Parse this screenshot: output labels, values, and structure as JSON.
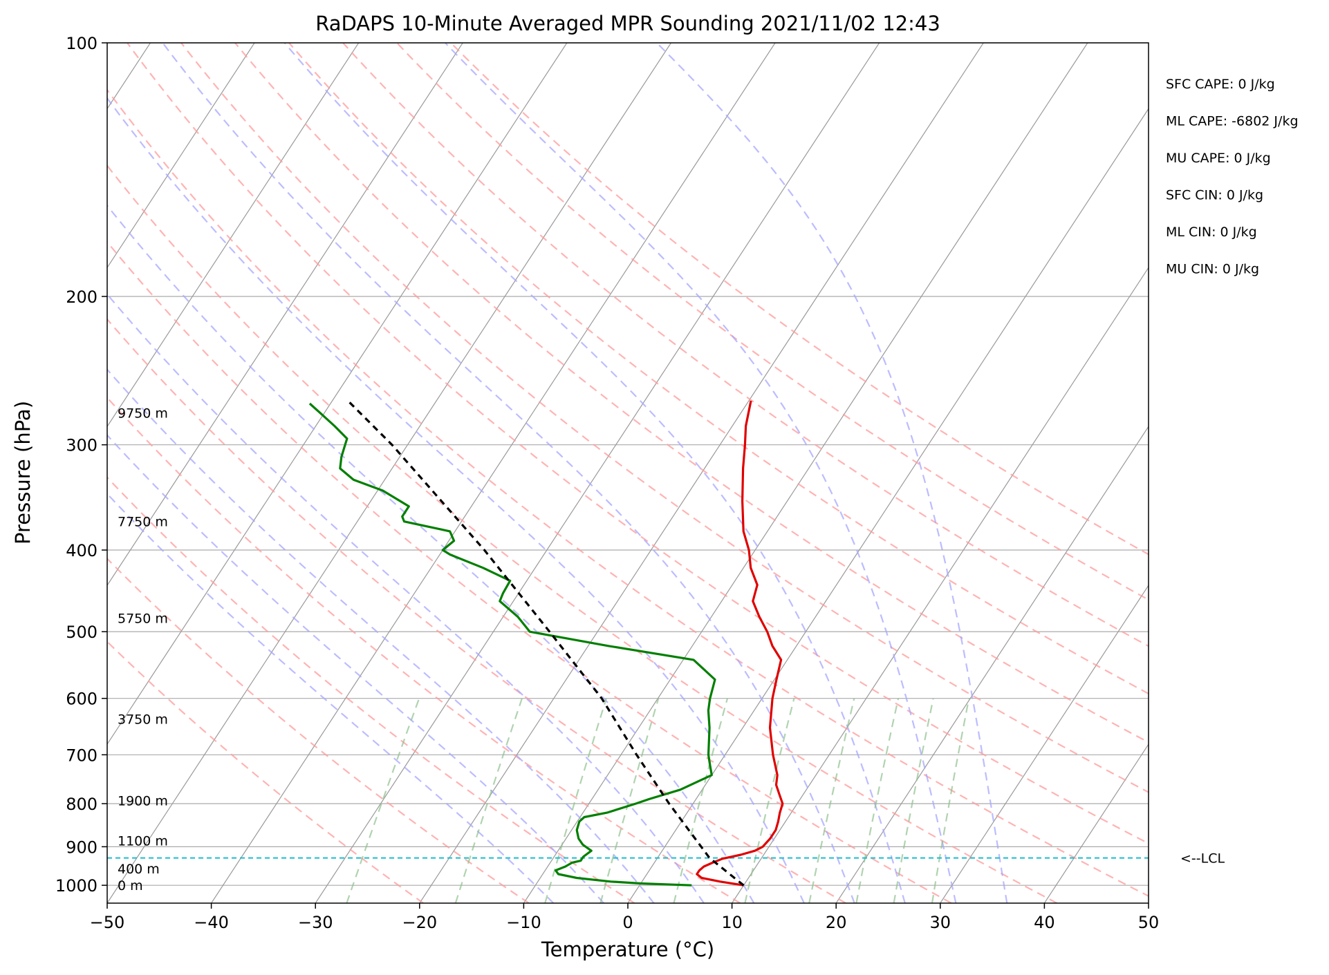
{
  "chart_data": {
    "type": "skewt",
    "title": "RaDAPS 10-Minute Averaged MPR Sounding 2021/11/02 12:43",
    "xlabel": "Temperature (°C)",
    "ylabel": "Pressure (hPa)",
    "xlim": [
      -50,
      50
    ],
    "ylim": [
      1050,
      100
    ],
    "log_y": true,
    "skew": "isotherms slanted to the right",
    "grid": true,
    "x_ticks": [
      -50,
      -40,
      -30,
      -20,
      -10,
      0,
      10,
      20,
      30,
      40,
      50
    ],
    "x_tick_labels": [
      "−50",
      "−40",
      "−30",
      "−20",
      "−10",
      "0",
      "10",
      "20",
      "30",
      "40",
      "50"
    ],
    "y_ticks": [
      1000,
      900,
      800,
      700,
      600,
      500,
      400,
      300,
      200,
      100
    ],
    "y_tick_labels": [
      "1000",
      "900",
      "800",
      "700",
      "600",
      "500",
      "400",
      "300",
      "200",
      "100"
    ],
    "height_labels": [
      {
        "p": 1000,
        "label": "0 m"
      },
      {
        "p": 955,
        "label": "400 m"
      },
      {
        "p": 885,
        "label": "1100 m"
      },
      {
        "p": 793,
        "label": "1900 m"
      },
      {
        "p": 635,
        "label": "3750 m"
      },
      {
        "p": 482,
        "label": "5750 m"
      },
      {
        "p": 370,
        "label": "7750 m"
      },
      {
        "p": 275,
        "label": "9750 m"
      }
    ],
    "indices": [
      "SFC CAPE: 0 J/kg",
      "ML CAPE: -6802 J/kg",
      "MU CAPE: 0 J/kg",
      "SFC CIN: 0 J/kg",
      "ML CIN: 0 J/kg",
      "MU CIN: 0 J/kg"
    ],
    "lcl": {
      "p": 928,
      "label": "<--LCL",
      "color": "#17becf"
    },
    "series": [
      {
        "name": "temperature",
        "color": "#e00000",
        "points": [
          [
            1000,
            10.0
          ],
          [
            990,
            7.5
          ],
          [
            980,
            5.5
          ],
          [
            970,
            4.8
          ],
          [
            960,
            4.8
          ],
          [
            950,
            5.0
          ],
          [
            940,
            5.6
          ],
          [
            930,
            6.3
          ],
          [
            920,
            7.8
          ],
          [
            910,
            8.9
          ],
          [
            900,
            9.4
          ],
          [
            880,
            9.6
          ],
          [
            860,
            9.6
          ],
          [
            840,
            9.3
          ],
          [
            820,
            8.9
          ],
          [
            800,
            8.6
          ],
          [
            780,
            7.7
          ],
          [
            760,
            6.8
          ],
          [
            740,
            6.3
          ],
          [
            700,
            4.6
          ],
          [
            650,
            2.6
          ],
          [
            600,
            1.0
          ],
          [
            570,
            0.2
          ],
          [
            540,
            -0.6
          ],
          [
            520,
            -2.3
          ],
          [
            500,
            -3.7
          ],
          [
            480,
            -5.4
          ],
          [
            460,
            -7.0
          ],
          [
            440,
            -7.6
          ],
          [
            420,
            -9.3
          ],
          [
            400,
            -10.6
          ],
          [
            380,
            -12.3
          ],
          [
            350,
            -14.3
          ],
          [
            320,
            -16.3
          ],
          [
            300,
            -17.6
          ],
          [
            285,
            -18.7
          ],
          [
            266,
            -19.8
          ]
        ]
      },
      {
        "name": "dewpoint",
        "color": "#007f00",
        "points": [
          [
            1000,
            5.0
          ],
          [
            995,
            0.0
          ],
          [
            990,
            -3.0
          ],
          [
            980,
            -6.5
          ],
          [
            970,
            -8.5
          ],
          [
            960,
            -9.0
          ],
          [
            950,
            -8.3
          ],
          [
            940,
            -7.9
          ],
          [
            935,
            -7.2
          ],
          [
            925,
            -7.2
          ],
          [
            910,
            -6.8
          ],
          [
            895,
            -8.0
          ],
          [
            880,
            -8.8
          ],
          [
            860,
            -9.5
          ],
          [
            840,
            -9.8
          ],
          [
            830,
            -9.6
          ],
          [
            820,
            -7.7
          ],
          [
            800,
            -5.5
          ],
          [
            790,
            -4.5
          ],
          [
            770,
            -2.1
          ],
          [
            740,
            0.0
          ],
          [
            720,
            -0.8
          ],
          [
            700,
            -1.6
          ],
          [
            650,
            -3.2
          ],
          [
            620,
            -4.4
          ],
          [
            600,
            -5.0
          ],
          [
            570,
            -5.7
          ],
          [
            540,
            -9.0
          ],
          [
            520,
            -18.0
          ],
          [
            500,
            -26.5
          ],
          [
            480,
            -28.6
          ],
          [
            460,
            -31.3
          ],
          [
            450,
            -31.5
          ],
          [
            435,
            -31.6
          ],
          [
            420,
            -35.0
          ],
          [
            405,
            -39.0
          ],
          [
            400,
            -40.0
          ],
          [
            390,
            -39.5
          ],
          [
            380,
            -40.5
          ],
          [
            370,
            -45.5
          ],
          [
            365,
            -46.0
          ],
          [
            355,
            -46.0
          ],
          [
            340,
            -49.5
          ],
          [
            330,
            -53.0
          ],
          [
            320,
            -55.0
          ],
          [
            310,
            -55.6
          ],
          [
            300,
            -56.0
          ],
          [
            295,
            -56.2
          ],
          [
            285,
            -58.2
          ],
          [
            275,
            -60.4
          ],
          [
            268,
            -62.0
          ]
        ]
      },
      {
        "name": "parcel",
        "color": "#000000",
        "style": "dashed",
        "points": [
          [
            1000,
            10.0
          ],
          [
            928,
            5.0
          ],
          [
            800,
            -2.3
          ],
          [
            700,
            -8.5
          ],
          [
            600,
            -15.4
          ],
          [
            500,
            -24.6
          ],
          [
            400,
            -36.0
          ],
          [
            300,
            -51.5
          ],
          [
            266,
            -58.5
          ]
        ]
      }
    ],
    "reference_lines": {
      "dry_adiabats_K": [
        250,
        260,
        270,
        280,
        290,
        300,
        310,
        320,
        330,
        340,
        350,
        360,
        370,
        380,
        390
      ],
      "moist_adiabats_C": [
        -10,
        -5,
        0,
        5,
        10,
        15,
        20,
        25,
        30,
        35
      ],
      "mixing_ratios_g_kg": [
        0.4,
        1,
        2,
        3,
        5,
        8,
        12,
        16,
        20,
        25
      ],
      "dry_adiabat_color": "#ff9a9a",
      "moist_adiabat_color": "#a6a6ff",
      "mixing_ratio_color": "#8fc08f",
      "isotherm_color": "#999999",
      "isobar_color": "#aaaaaa"
    }
  }
}
